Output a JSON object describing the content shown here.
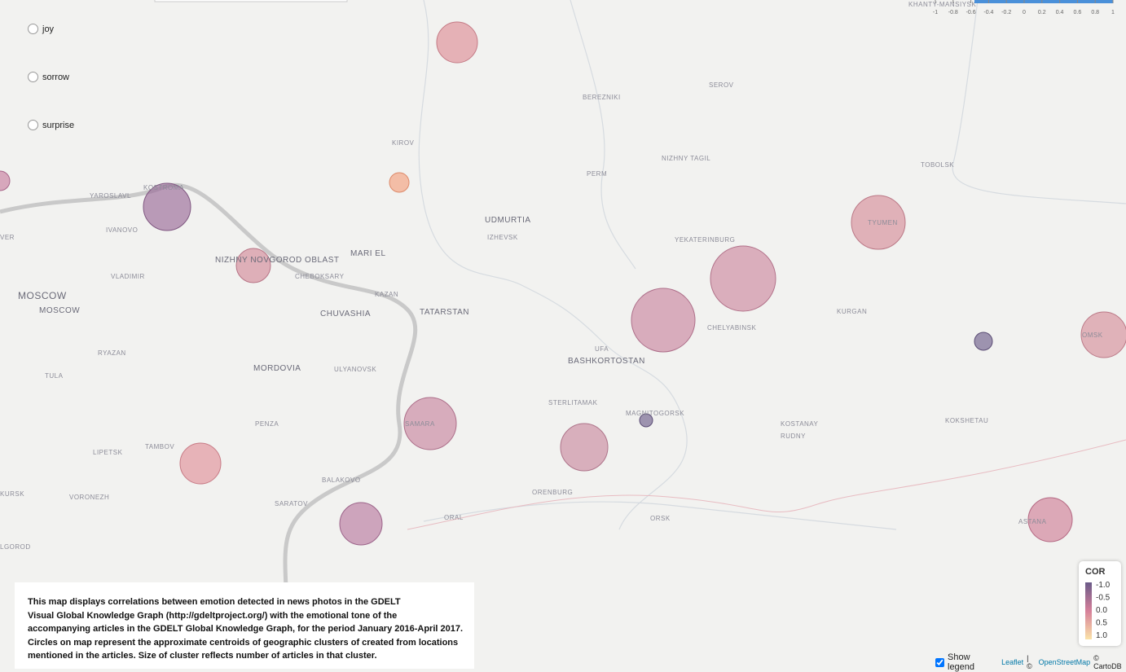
{
  "controls": {
    "options": [
      "joy",
      "sorrow",
      "surprise"
    ],
    "show_legend": "Show legend"
  },
  "top_scale": {
    "ticks": [
      -1,
      -0.8,
      -0.6,
      -0.4,
      -0.2,
      0,
      0.2,
      0.4,
      0.6,
      0.8,
      1
    ],
    "lim": [
      -1,
      1
    ]
  },
  "places": [
    "BEREZNIKI",
    "SEROV",
    "KIROV",
    "PERM",
    "NIZHNY TAGIL",
    "TOBOLSK",
    "KOSTROMA",
    "YAROSLAVL",
    "IVANOVO",
    "UDMURTIA",
    "IZHEVSK",
    "TYUMEN",
    "YEKATERINBURG",
    "MARI EL",
    "NIZHNY NOVGOROD OBLAST",
    "VLADIMIR",
    "CHEBOKSARY",
    "MOSCOW",
    "MOSCOW",
    "CHUVASHIA",
    "TATARSTAN",
    "KAZAN",
    "CHELYABINSK",
    "KURGAN",
    "OMSK",
    "UFA",
    "BASHKORTOSTAN",
    "RYAZAN",
    "MORDOVIA",
    "ULYANOVSK",
    "TULA",
    "STERLITAMAK",
    "MAGNITOGORSK",
    "SAMARA",
    "KOSTANAY",
    "KOKSHETAU",
    "PENZA",
    "RUDNY",
    "TAMBOV",
    "LIPETSK",
    "BALAKOVO",
    "ORENBURG",
    "KURSK",
    "VORONEZH",
    "SARATOV",
    "ORAL",
    "ORSK",
    "ASTANA",
    "LGOROD",
    "VER",
    "KHANTY-MANSIYSK"
  ],
  "description": [
    "This map displays correlations between emotion detected in news photos in the GDELT",
    "Visual Global Knowledge Graph (http://gdeltproject.org/) with the emotional tone of the",
    "accompanying articles in the GDELT Global Knowledge Graph, for the period January 2016-April 2017.",
    "Circles on map represent the approximate centroids of geographic clusters of created from locations",
    "mentioned in the articles. Size of cluster reflects number of articles in that cluster."
  ],
  "legend": {
    "title": "COR",
    "lim": [
      -1,
      1
    ],
    "ticks": [
      {
        "value": -1,
        "label": "-1.0"
      },
      {
        "value": -0.5,
        "label": "-0.5"
      },
      {
        "value": 0,
        "label": "0.0"
      },
      {
        "value": 0.5,
        "label": "0.5"
      },
      {
        "value": 1,
        "label": "1.0"
      }
    ]
  },
  "attribution": [
    "Leaflet",
    "| ©",
    "OpenStreetMap",
    "© CartoDB"
  ]
}
